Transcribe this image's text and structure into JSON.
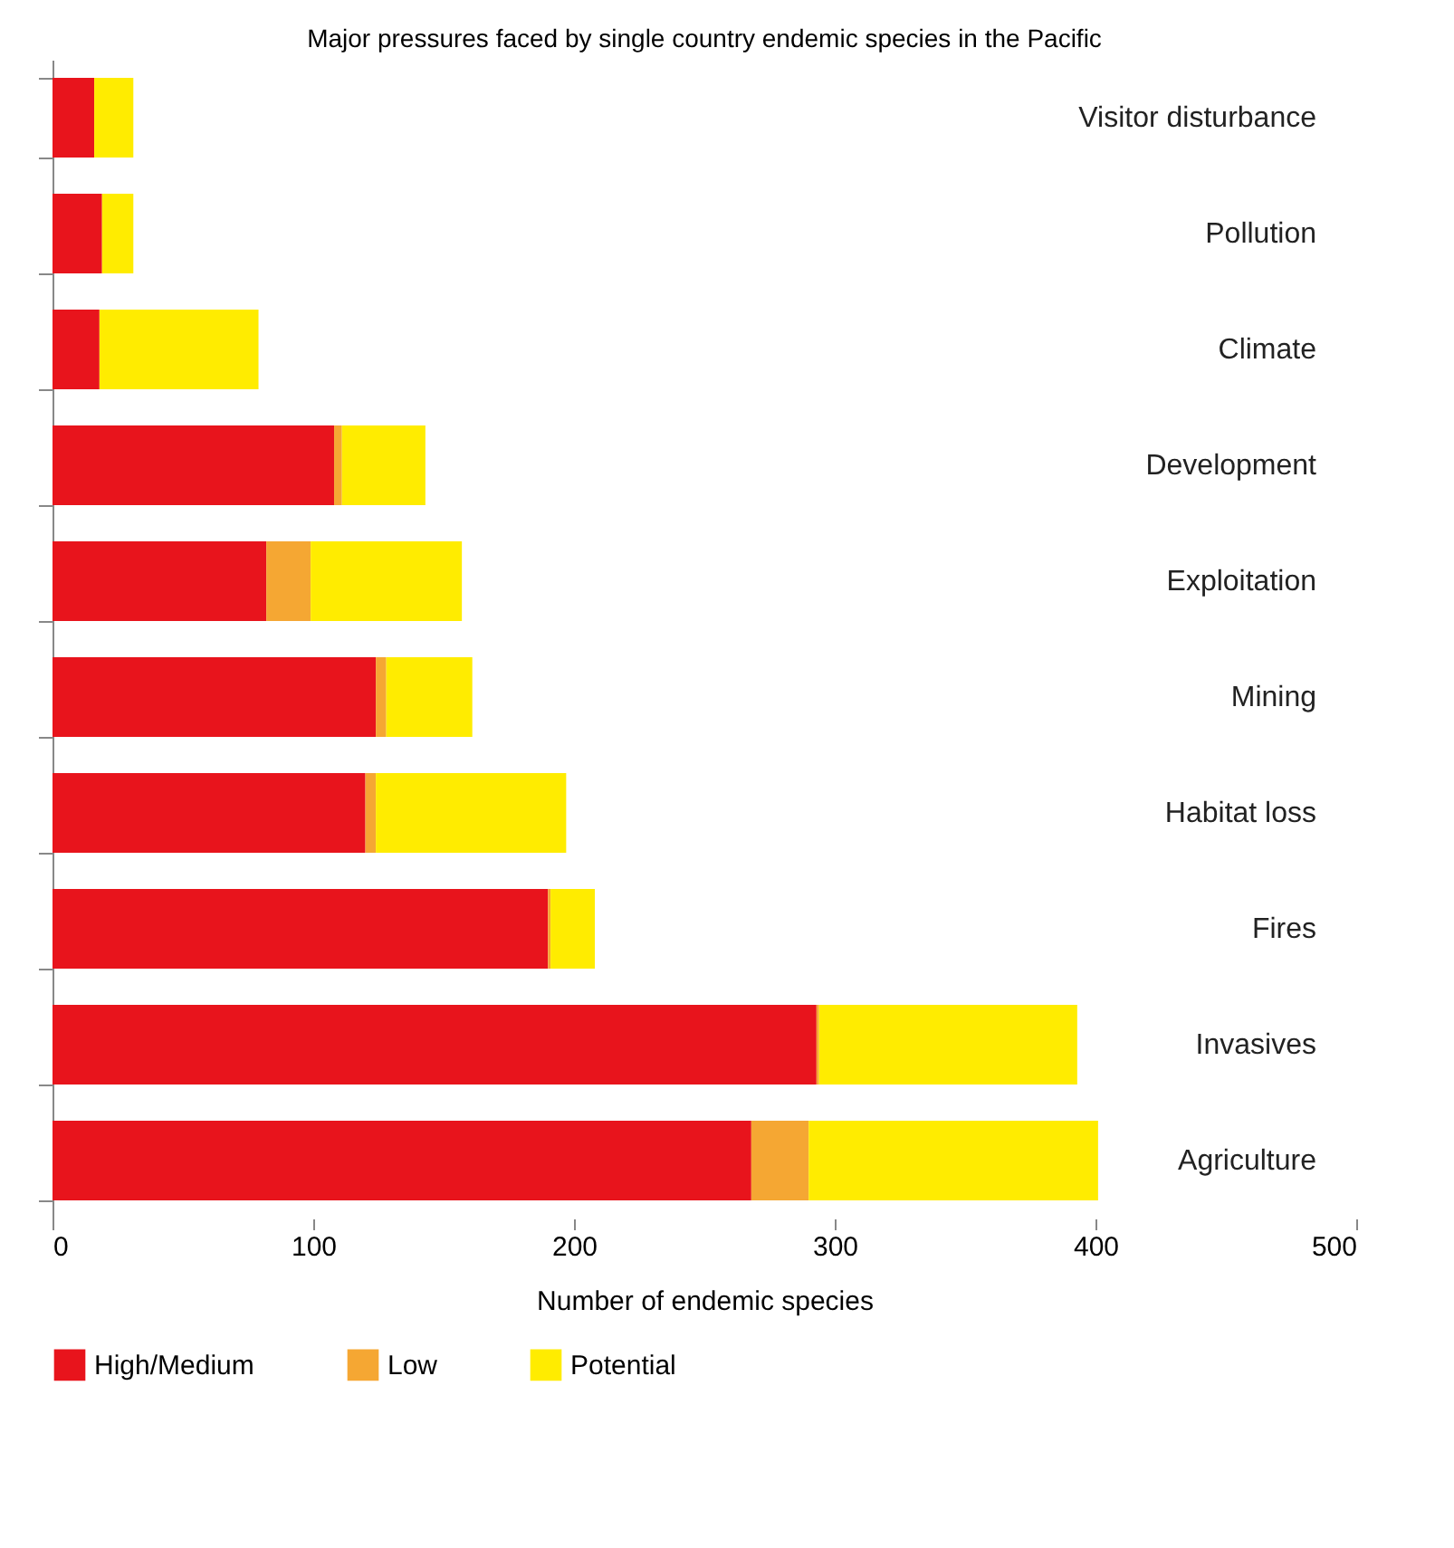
{
  "chart_data": {
    "type": "bar",
    "orientation": "horizontal",
    "stacked": true,
    "title": "Major pressures faced by single country endemic species in the Pacific",
    "xlabel": "Number of endemic species",
    "categories": [
      "Visitor disturbance",
      "Pollution",
      "Climate",
      "Development",
      "Exploitation",
      "Mining",
      "Habitat loss",
      "Fires",
      "Invasives",
      "Agriculture"
    ],
    "series": [
      {
        "name": "High/Medium",
        "color": "#e8141c",
        "values": [
          16,
          19,
          18,
          108,
          82,
          124,
          120,
          190,
          293,
          268
        ]
      },
      {
        "name": "Low",
        "color": "#f5a733",
        "values": [
          0,
          0,
          0,
          3,
          17,
          4,
          4,
          1,
          1,
          22
        ]
      },
      {
        "name": "Potential",
        "color": "#ffec00",
        "values": [
          15,
          12,
          61,
          32,
          58,
          33,
          73,
          17,
          99,
          111
        ]
      }
    ],
    "xlim": [
      0,
      500
    ],
    "xticks": [
      0,
      100,
      200,
      300,
      400,
      500
    ],
    "grid": false,
    "legend": "bottom"
  }
}
